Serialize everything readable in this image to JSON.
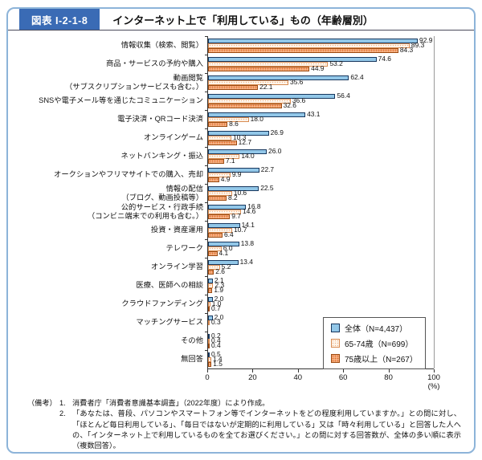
{
  "header": {
    "figure_label": "図表 I-2-1-8",
    "title": "インターネット上で「利用している」もの（年齢層別）"
  },
  "chart_data": {
    "type": "bar",
    "orientation": "horizontal",
    "unit": "(%)",
    "xlim": [
      0,
      100
    ],
    "xticks": [
      0,
      20,
      40,
      60,
      80,
      100
    ],
    "grid": false,
    "legend_position": "inside-bottom-right",
    "categories": [
      "情報収集（検索、閲覧）",
      "商品・サービスの予約や購入",
      "動画閲覧\n（サブスクリプションサービスも含む。）",
      "SNSや電子メール等を通じたコミュニケーション",
      "電子決済・QRコード決済",
      "オンラインゲーム",
      "ネットバンキング・振込",
      "オークションやフリマサイトでの購入、売却",
      "情報の配信\n（ブログ、動画投稿等）",
      "公的サービス・行政手続\n（コンビニ端末での利用も含む。）",
      "投資・資産運用",
      "テレワーク",
      "オンライン学習",
      "医療、医師への相談",
      "クラウドファンディング",
      "マッチングサービス",
      "その他",
      "無回答"
    ],
    "series": [
      {
        "name": "全体（N=4,437）",
        "color": "#92C7E8",
        "values": [
          92.9,
          74.6,
          62.4,
          56.4,
          43.1,
          26.9,
          26.0,
          22.7,
          22.5,
          16.8,
          14.1,
          13.8,
          13.4,
          2.1,
          2.0,
          2.0,
          0.2,
          0.5
        ]
      },
      {
        "name": "65-74歳（N=699）",
        "color": "#FDF4EA",
        "values": [
          89.3,
          53.2,
          35.6,
          36.6,
          18.0,
          10.3,
          14.0,
          9.9,
          10.6,
          14.6,
          10.7,
          6.0,
          5.2,
          2.3,
          1.0,
          0.3,
          0.4,
          1.4
        ]
      },
      {
        "name": "75歳以上（N=267）",
        "color": "#F5B183",
        "values": [
          84.3,
          44.9,
          22.1,
          32.6,
          8.6,
          12.7,
          7.1,
          4.9,
          8.2,
          9.7,
          6.4,
          4.1,
          2.6,
          1.9,
          0.7,
          null,
          0.4,
          1.5
        ]
      }
    ]
  },
  "footnote": {
    "label": "（備考）",
    "items": [
      {
        "num": "1.",
        "text": "消費者庁「消費者意識基本調査」（2022年度）により作成。"
      },
      {
        "num": "2.",
        "text": "「あなたは、普段、パソコンやスマートフォン等でインターネットをどの程度利用していますか。」との問に対し、「ほとんど毎日利用している」、「毎日ではないが定期的に利用している」又は「時々利用している」と回答した人への、「インターネット上で利用しているものを全てお選びください。」との問に対する回答数が、全体の多い順に表示（複数回答）。"
      }
    ]
  },
  "colors": {
    "header_label_bg": "#3A6BB5",
    "header_label_text": "#FFFFFF",
    "frame_border": "#8DB4D9",
    "axis": "#333333",
    "series_all_fill": "#92C7E8",
    "series_all_border": "#17375E",
    "series_65_74_fill": "#FDF4EA",
    "series_65_74_dot": "#F3B183",
    "series_75_fill": "#F5B183",
    "series_75_dot": "#E06C2C"
  }
}
